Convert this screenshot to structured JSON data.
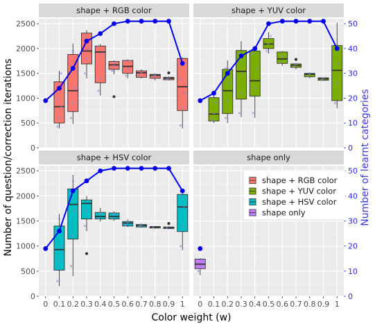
{
  "chart_data": {
    "type": "box",
    "xlabel": "Color weight (w)",
    "ylabel": "Number of question/correction iterations",
    "ylabel_right": "Number of learnt categories",
    "x_ticks": [
      "0",
      "0.1",
      "0.2",
      "0.3",
      "0.4",
      "0.5",
      "0.6",
      "0.7",
      "0.8",
      "0.9",
      "1"
    ],
    "ylim": [
      0,
      2600
    ],
    "y_ticks": [
      0,
      500,
      1000,
      1500,
      2000,
      2500
    ],
    "ylim_right": [
      0,
      52
    ],
    "y_ticks_right": [
      0,
      10,
      20,
      30,
      40,
      50
    ],
    "grid": true,
    "legend": {
      "position": "inside-bottom-right",
      "entries": [
        {
          "label": "shape + RGB color",
          "color": "#f8766d"
        },
        {
          "label": "shape + YUV color",
          "color": "#7cae00"
        },
        {
          "label": "shape + HSV color",
          "color": "#00bfc4"
        },
        {
          "label": "shape only",
          "color": "#c77cff"
        }
      ]
    },
    "line_color": "#0000ee",
    "panels": [
      {
        "title": "shape + RGB color",
        "color": "#f8766d",
        "boxes": [
          {
            "x": 0.1,
            "q1": 500,
            "median": 830,
            "q3": 1330,
            "lo": 390,
            "hi": 1550,
            "outliers": [],
            "points": [
              430,
              600,
              820,
              1000,
              1200,
              1500
            ]
          },
          {
            "x": 0.2,
            "q1": 730,
            "median": 1150,
            "q3": 1880,
            "lo": 480,
            "hi": 2100,
            "outliers": [],
            "points": [
              600,
              900,
              1200,
              1600,
              1950
            ]
          },
          {
            "x": 0.3,
            "q1": 1690,
            "median": 1950,
            "q3": 2310,
            "lo": 1400,
            "hi": 2370,
            "outliers": [],
            "points": [
              1500,
              1800,
              2000,
              2250
            ]
          },
          {
            "x": 0.4,
            "q1": 1310,
            "median": 1930,
            "q3": 2050,
            "lo": 1050,
            "hi": 2090,
            "outliers": [],
            "points": [
              1150,
              1400,
              1900,
              2050
            ]
          },
          {
            "x": 0.5,
            "q1": 1580,
            "median": 1670,
            "q3": 1740,
            "lo": 1480,
            "hi": 1760,
            "outliers": [
              1030
            ],
            "points": [
              1550,
              1650,
              1720
            ]
          },
          {
            "x": 0.6,
            "q1": 1500,
            "median": 1640,
            "q3": 1760,
            "lo": 1400,
            "hi": 1780,
            "outliers": [],
            "points": [
              1450,
              1600,
              1750
            ]
          },
          {
            "x": 0.7,
            "q1": 1420,
            "median": 1510,
            "q3": 1550,
            "lo": 1400,
            "hi": 1580,
            "outliers": [],
            "points": [
              1450,
              1520
            ]
          },
          {
            "x": 0.8,
            "q1": 1400,
            "median": 1460,
            "q3": 1480,
            "lo": 1360,
            "hi": 1500,
            "outliers": [],
            "points": [
              1440,
              1470
            ]
          },
          {
            "x": 0.9,
            "q1": 1370,
            "median": 1400,
            "q3": 1420,
            "lo": 1360,
            "hi": 1440,
            "outliers": [
              1510
            ],
            "points": [
              1390,
              1410
            ]
          },
          {
            "x": 1.0,
            "q1": 750,
            "median": 1230,
            "q3": 1800,
            "lo": 390,
            "hi": 1820,
            "outliers": [],
            "points": [
              450,
              800,
              1100,
              1400,
              1700
            ]
          }
        ],
        "line": {
          "x": [
            0,
            0.1,
            0.2,
            0.3,
            0.4,
            0.5,
            0.6,
            0.7,
            0.8,
            0.9,
            1.0
          ],
          "y": [
            19,
            24,
            32,
            43,
            46,
            50,
            51,
            51,
            51,
            51,
            34
          ]
        }
      },
      {
        "title": "shape + YUV color",
        "color": "#7cae00",
        "boxes": [
          {
            "x": 0.1,
            "q1": 540,
            "median": 680,
            "q3": 1010,
            "lo": 500,
            "hi": 1050,
            "outliers": [],
            "points": [
              560,
              700,
              900
            ]
          },
          {
            "x": 0.2,
            "q1": 690,
            "median": 1150,
            "q3": 1580,
            "lo": 500,
            "hi": 1760,
            "outliers": [],
            "points": [
              600,
              950,
              1300,
              1600
            ]
          },
          {
            "x": 0.3,
            "q1": 980,
            "median": 1540,
            "q3": 1960,
            "lo": 620,
            "hi": 2150,
            "outliers": [],
            "points": [
              700,
              1100,
              1500,
              1900
            ]
          },
          {
            "x": 0.4,
            "q1": 1040,
            "median": 1350,
            "q3": 1950,
            "lo": 600,
            "hi": 2000,
            "outliers": [],
            "points": [
              700,
              1200,
              1600,
              1900
            ]
          },
          {
            "x": 0.5,
            "q1": 2000,
            "median": 2090,
            "q3": 2200,
            "lo": 1900,
            "hi": 2330,
            "outliers": [],
            "points": [
              1950,
              2100,
              2250
            ]
          },
          {
            "x": 0.6,
            "q1": 1700,
            "median": 1790,
            "q3": 1930,
            "lo": 1650,
            "hi": 1950,
            "outliers": [],
            "points": [
              1720,
              1850
            ]
          },
          {
            "x": 0.7,
            "q1": 1620,
            "median": 1660,
            "q3": 1690,
            "lo": 1580,
            "hi": 1710,
            "outliers": [
              1780
            ],
            "points": [
              1640,
              1680
            ]
          },
          {
            "x": 0.8,
            "q1": 1430,
            "median": 1480,
            "q3": 1500,
            "lo": 1400,
            "hi": 1520,
            "outliers": [],
            "points": [
              1450,
              1490
            ]
          },
          {
            "x": 0.9,
            "q1": 1360,
            "median": 1390,
            "q3": 1410,
            "lo": 1350,
            "hi": 1420,
            "outliers": [],
            "points": [
              1370,
              1400
            ]
          },
          {
            "x": 1.0,
            "q1": 950,
            "median": 1560,
            "q3": 2060,
            "lo": 800,
            "hi": 2520,
            "outliers": [],
            "points": [
              900,
              1300,
              1700,
              2000
            ]
          }
        ],
        "line": {
          "x": [
            0,
            0.1,
            0.2,
            0.3,
            0.4,
            0.5,
            0.6,
            0.7,
            0.8,
            0.9,
            1.0
          ],
          "y": [
            19,
            22,
            30,
            37,
            40,
            50,
            51,
            51,
            51,
            51,
            40
          ]
        }
      },
      {
        "title": "shape + HSV color",
        "color": "#00bfc4",
        "boxes": [
          {
            "x": 0.1,
            "q1": 520,
            "median": 930,
            "q3": 1400,
            "lo": 200,
            "hi": 1640,
            "outliers": [],
            "points": [
              300,
              700,
              1000,
              1300,
              1550
            ]
          },
          {
            "x": 0.2,
            "q1": 1140,
            "median": 1830,
            "q3": 2140,
            "lo": 400,
            "hi": 2420,
            "outliers": [],
            "points": [
              600,
              1200,
              1700,
              2000,
              2300
            ]
          },
          {
            "x": 0.3,
            "q1": 1540,
            "median": 1850,
            "q3": 1920,
            "lo": 1300,
            "hi": 2000,
            "outliers": [
              850
            ],
            "points": [
              1400,
              1700,
              1900
            ]
          },
          {
            "x": 0.4,
            "q1": 1540,
            "median": 1590,
            "q3": 1670,
            "lo": 1490,
            "hi": 1760,
            "outliers": [],
            "points": [
              1550,
              1650
            ]
          },
          {
            "x": 0.5,
            "q1": 1540,
            "median": 1590,
            "q3": 1660,
            "lo": 1500,
            "hi": 1690,
            "outliers": [],
            "points": [
              1560,
              1640
            ]
          },
          {
            "x": 0.6,
            "q1": 1400,
            "median": 1460,
            "q3": 1490,
            "lo": 1380,
            "hi": 1530,
            "outliers": [],
            "points": [
              1420,
              1480
            ]
          },
          {
            "x": 0.7,
            "q1": 1380,
            "median": 1410,
            "q3": 1430,
            "lo": 1370,
            "hi": 1450,
            "outliers": [],
            "points": [
              1400,
              1420
            ]
          },
          {
            "x": 0.8,
            "q1": 1360,
            "median": 1380,
            "q3": 1390,
            "lo": 1350,
            "hi": 1400,
            "outliers": [],
            "points": [
              1370
            ]
          },
          {
            "x": 0.9,
            "q1": 1350,
            "median": 1370,
            "q3": 1380,
            "lo": 1340,
            "hi": 1390,
            "outliers": [
              1450
            ],
            "points": [
              1360
            ]
          },
          {
            "x": 1.0,
            "q1": 1290,
            "median": 1780,
            "q3": 2030,
            "lo": 920,
            "hi": 2060,
            "outliers": [],
            "points": [
              1000,
              1400,
              1800,
              2000
            ]
          }
        ],
        "line": {
          "x": [
            0,
            0.1,
            0.2,
            0.3,
            0.4,
            0.5,
            0.6,
            0.7,
            0.8,
            0.9,
            1.0
          ],
          "y": [
            19,
            26,
            42,
            46,
            50,
            51,
            51,
            51,
            51,
            51,
            42
          ]
        }
      },
      {
        "title": "shape only",
        "color": "#c77cff",
        "boxes": [
          {
            "x": 0,
            "q1": 550,
            "median": 640,
            "q3": 740,
            "lo": 420,
            "hi": 760,
            "outliers": [],
            "points": [
              500,
              600,
              700
            ]
          }
        ],
        "line": {
          "x": [
            0
          ],
          "y": [
            19
          ]
        }
      }
    ]
  }
}
